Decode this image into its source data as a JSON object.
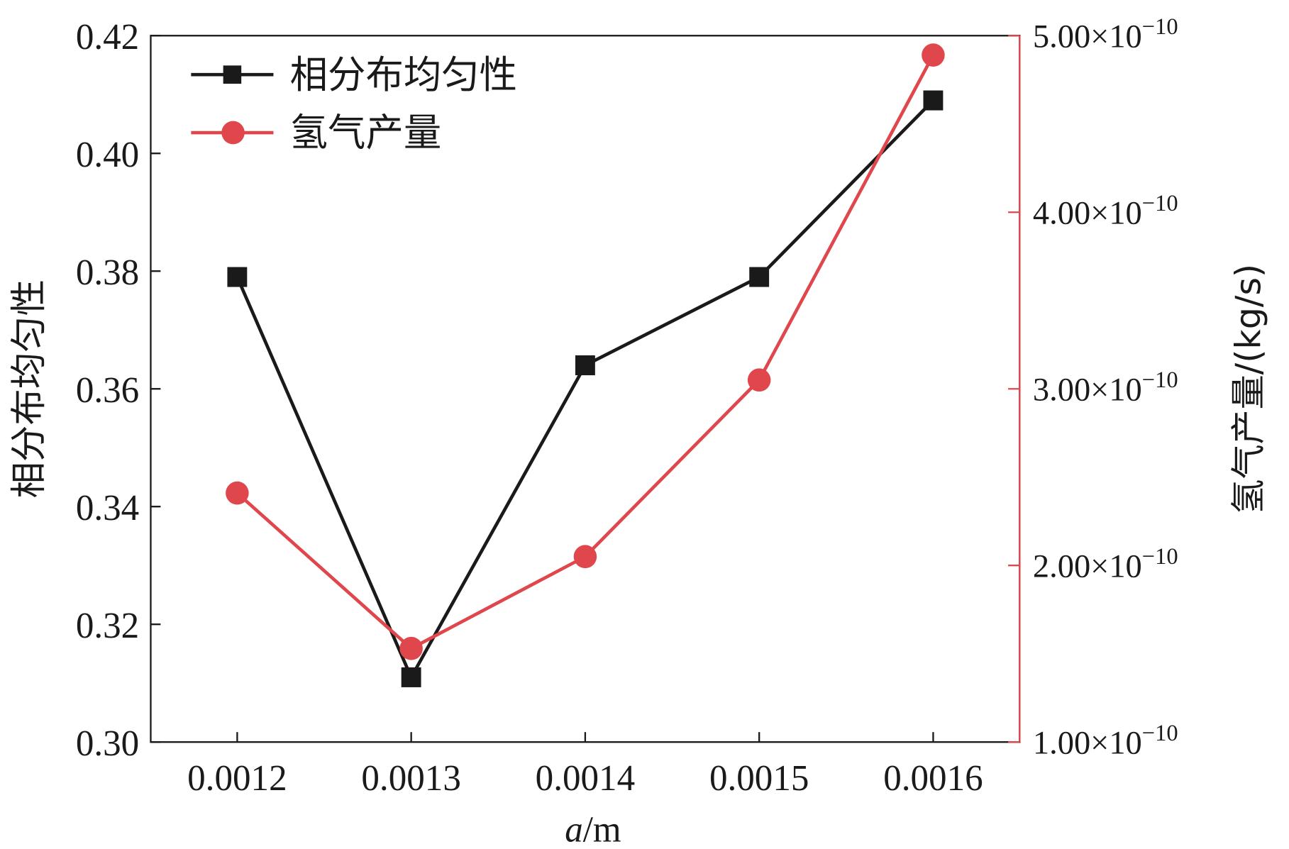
{
  "chart_data": {
    "type": "line",
    "title": "",
    "xlabel_italic": "a",
    "xlabel_rest": "/m",
    "ylabel": "相分布均匀性",
    "y2label": "氢气产量/(kg/s)",
    "x": [
      0.0012,
      0.0013,
      0.0014,
      0.0015,
      0.0016
    ],
    "x_tick_labels": [
      "0.0012",
      "0.0013",
      "0.0014",
      "0.0015",
      "0.0016"
    ],
    "ylim": [
      0.3,
      0.42
    ],
    "y_ticks": [
      0.3,
      0.32,
      0.34,
      0.36,
      0.38,
      0.4,
      0.42
    ],
    "y_tick_labels": [
      "0.30",
      "0.32",
      "0.34",
      "0.36",
      "0.38",
      "0.40",
      "0.42"
    ],
    "y2lim": [
      1e-10,
      5e-10
    ],
    "y2_ticks": [
      1.0,
      2.0,
      3.0,
      4.0,
      5.0
    ],
    "y2_tick_mantissas": [
      "1.00",
      "2.00",
      "3.00",
      "4.00",
      "5.00"
    ],
    "y2_tick_times": "×10",
    "y2_tick_exponent": "−10",
    "legend_position": "top-left",
    "series": [
      {
        "name": "相分布均匀性",
        "axis": "left",
        "color": "#1a1a1a",
        "marker": "square",
        "values": [
          0.379,
          0.311,
          0.364,
          0.379,
          0.409
        ]
      },
      {
        "name": "氢气产量",
        "axis": "right",
        "color": "#e0474c",
        "marker": "circle",
        "values": [
          2.41e-10,
          1.53e-10,
          2.05e-10,
          3.05e-10,
          4.89e-10
        ]
      }
    ]
  }
}
